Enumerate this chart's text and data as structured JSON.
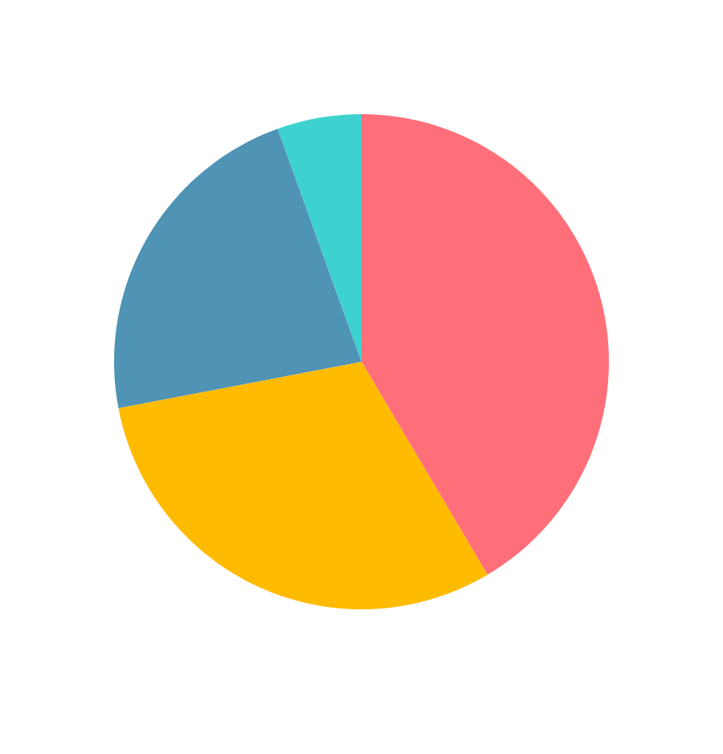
{
  "chart_data": {
    "type": "pie",
    "categories": [
      null,
      null,
      null,
      null
    ],
    "values": [
      41.5,
      30.5,
      22.5,
      5.5
    ],
    "colors": [
      "#ff6f7a",
      "#ffbb00",
      "#4f93b5",
      "#3dd2cf"
    ]
  }
}
